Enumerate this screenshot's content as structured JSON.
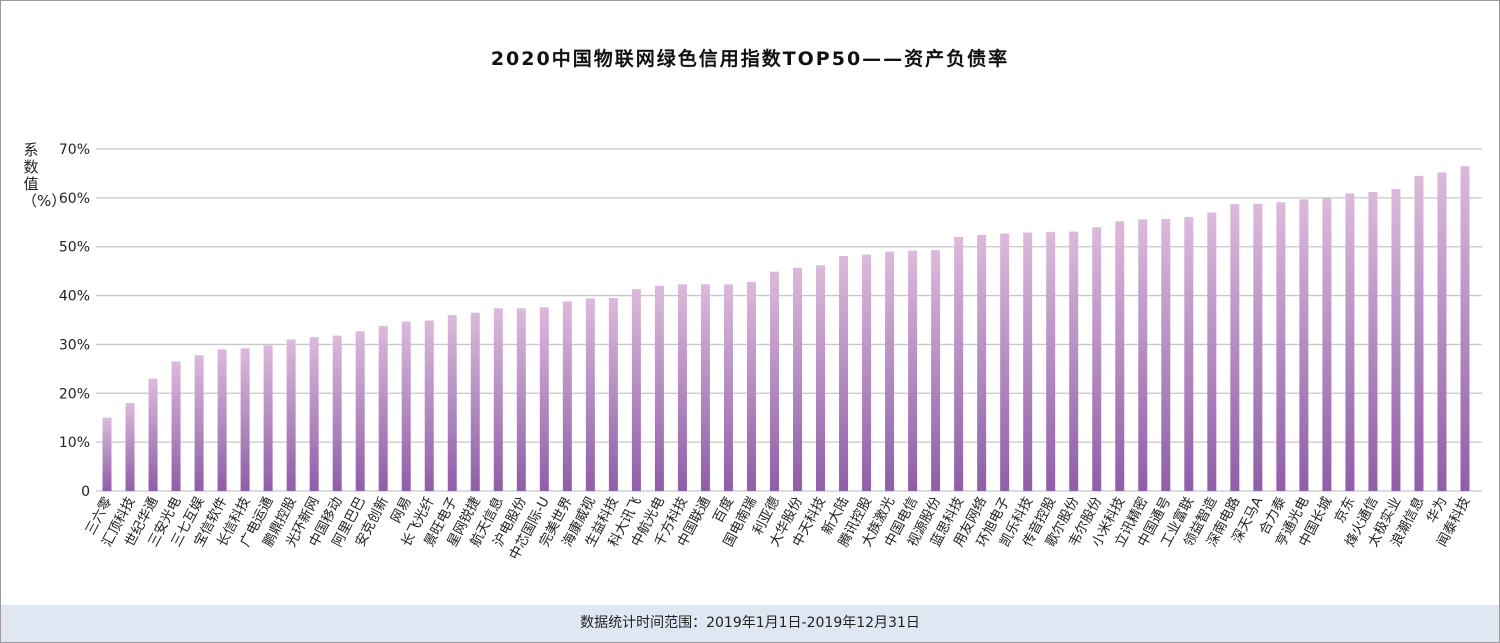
{
  "chart_data": {
    "type": "bar",
    "title": "2020中国物联网绿色信用指数TOP50——资产负债率",
    "ylabel": "系数值（%）",
    "xlabel": "",
    "ylim": [
      0,
      70
    ],
    "yticks": [
      "0",
      "10%",
      "20%",
      "30%",
      "40%",
      "50%",
      "60%",
      "70%"
    ],
    "grid": true,
    "bar_color_top": "#dcbadb",
    "bar_color_bottom": "#8e5ea8",
    "categories": [
      "三六零",
      "汇顶科技",
      "世纪华通",
      "三安光电",
      "三七互娱",
      "宝信软件",
      "长信科技",
      "广电运通",
      "鹏鼎控股",
      "光环新网",
      "中国移动",
      "阿里巴巴",
      "安克创新",
      "网易",
      "长飞光纤",
      "景旺电子",
      "星网锐捷",
      "航天信息",
      "沪电股份",
      "中芯国际-U",
      "完美世界",
      "海康威视",
      "生益科技",
      "科大讯飞",
      "中航光电",
      "千方科技",
      "中国联通",
      "百度",
      "国电南瑞",
      "利亚德",
      "大华股份",
      "中天科技",
      "新大陆",
      "腾讯控股",
      "大族激光",
      "中国电信",
      "视源股份",
      "蓝思科技",
      "用友网络",
      "环旭电子",
      "凯乐科技",
      "传音控股",
      "歌尔股份",
      "韦尔股份",
      "小米科技",
      "立讯精密",
      "中国通号",
      "工业富联",
      "领益智造",
      "深南电路",
      "深天马A",
      "合力泰",
      "亨通光电",
      "中国长城",
      "京东",
      "烽火通信",
      "太极实业",
      "浪潮信息",
      "华为",
      "闻泰科技"
    ],
    "values": [
      15,
      18,
      23,
      26.5,
      27.8,
      29,
      29.2,
      29.8,
      31,
      31.5,
      31.8,
      32.7,
      33.8,
      34.7,
      34.9,
      36,
      36.5,
      37.4,
      37.4,
      37.6,
      38.8,
      39.4,
      39.5,
      41.3,
      42,
      42.3,
      42.3,
      42.3,
      42.8,
      44.9,
      45.7,
      46.2,
      48.1,
      48.4,
      49,
      49.2,
      49.3,
      52,
      52.4,
      52.7,
      52.9,
      53,
      53.1,
      54,
      55.2,
      55.6,
      55.7,
      56.1,
      57,
      58.7,
      58.8,
      59.1,
      59.7,
      59.9,
      60.9,
      61.2,
      61.8,
      64.5,
      65.2,
      66.5
    ]
  },
  "footer": {
    "text": "数据统计时间范围：2019年1月1日-2019年12月31日"
  }
}
